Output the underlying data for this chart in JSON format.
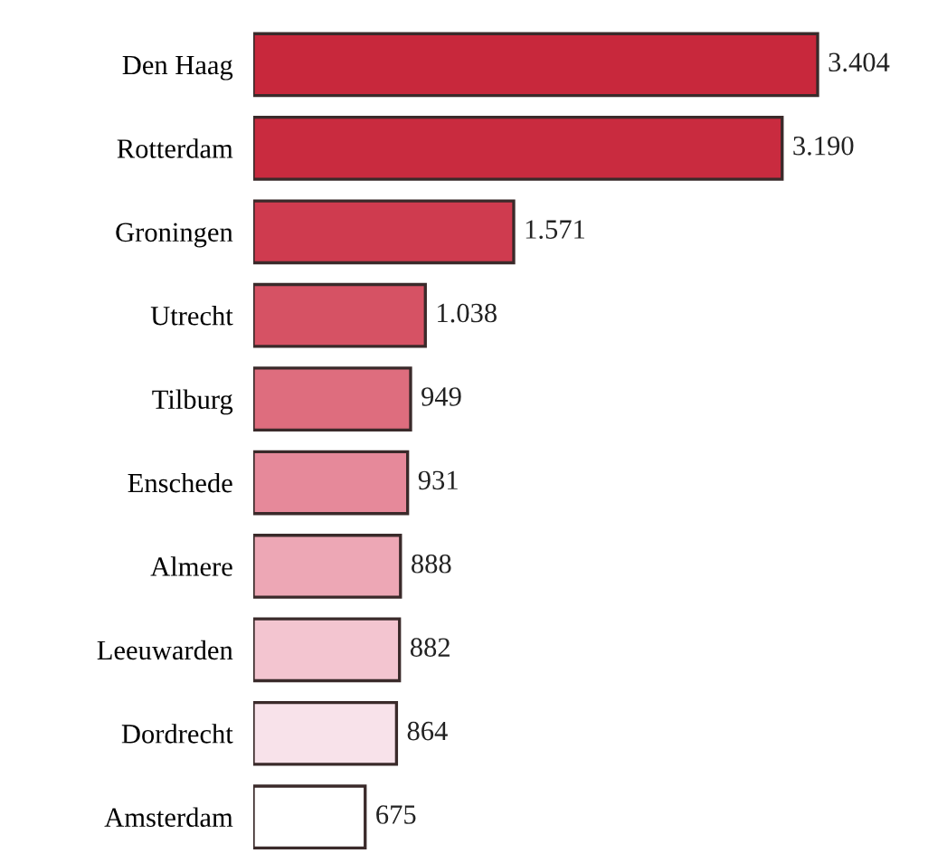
{
  "chart_data": {
    "type": "bar",
    "orientation": "horizontal",
    "categories": [
      "Den Haag",
      "Rotterdam",
      "Groningen",
      "Utrecht",
      "Tilburg",
      "Enschede",
      "Almere",
      "Leeuwarden",
      "Dordrecht",
      "Amsterdam"
    ],
    "values": [
      3404,
      3190,
      1571,
      1038,
      949,
      931,
      888,
      882,
      864,
      675
    ],
    "value_labels": [
      "3.404",
      "3.190",
      "1.571",
      "1.038",
      "949",
      "931",
      "888",
      "882",
      "864",
      "675"
    ],
    "colors": [
      "#c8283c",
      "#c92b3f",
      "#cf3b4f",
      "#d65264",
      "#de6d7e",
      "#e6899a",
      "#eda7b5",
      "#f3c5d0",
      "#f8e2ea",
      "#ffffff"
    ],
    "grid": false,
    "legend": false
  }
}
